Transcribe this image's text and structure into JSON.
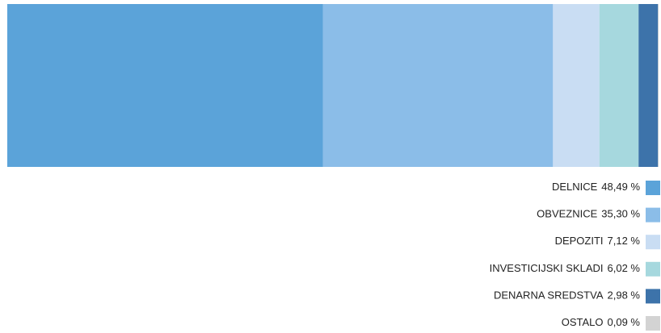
{
  "chart_data": {
    "type": "bar",
    "stacked": true,
    "orientation": "horizontal",
    "xlim": [
      0,
      100
    ],
    "series": [
      {
        "name": "DELNICE",
        "color": "#5ba3d9",
        "values": [
          48.49
        ],
        "value_labels": [
          "48,49 %"
        ]
      },
      {
        "name": "OBVEZNICE",
        "color": "#8bbde8",
        "values": [
          35.3
        ],
        "value_labels": [
          "35,30 %"
        ]
      },
      {
        "name": "DEPOZITI",
        "color": "#c9ddf3",
        "values": [
          7.12
        ],
        "value_labels": [
          "7,12 %"
        ]
      },
      {
        "name": "INVESTICIJSKI SKLADI",
        "color": "#a6d8de",
        "values": [
          6.02
        ],
        "value_labels": [
          "6,02 %"
        ]
      },
      {
        "name": "DENARNA SREDSTVA",
        "color": "#3d73aa",
        "values": [
          2.98
        ],
        "value_labels": [
          "2,98 %"
        ]
      },
      {
        "name": "OSTALO",
        "color": "#d3d3d3",
        "values": [
          0.09
        ],
        "value_labels": [
          "0,09 %"
        ]
      }
    ]
  }
}
